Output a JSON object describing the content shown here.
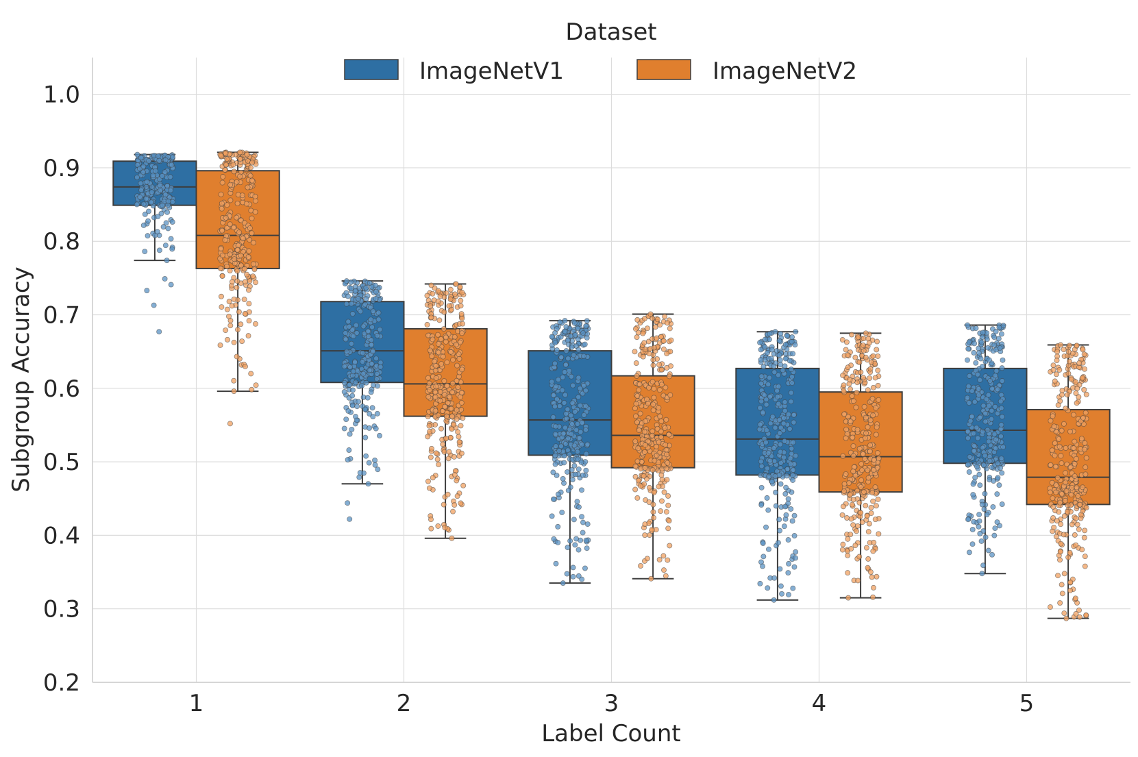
{
  "chart_data": {
    "type": "box",
    "xlabel": "Label Count",
    "ylabel": "Subgroup Accuracy",
    "ylim": [
      0.2,
      1.05
    ],
    "yticks": [
      "0.2",
      "0.3",
      "0.4",
      "0.5",
      "0.6",
      "0.7",
      "0.8",
      "0.9",
      "1.0"
    ],
    "categories": [
      "1",
      "2",
      "3",
      "4",
      "5"
    ],
    "legend": {
      "title": "Dataset",
      "placement": "top-center"
    },
    "grid": true,
    "series": [
      {
        "name": "ImageNetV1",
        "color": "#2e6fa3",
        "point_color": "#5b93c4",
        "boxes": [
          {
            "q1": 0.849,
            "median": 0.874,
            "q3": 0.909,
            "whisker_low": 0.774,
            "whisker_high": 0.918,
            "n": 200,
            "outliers": [
              0.749,
              0.741,
              0.733,
              0.713,
              0.677
            ]
          },
          {
            "q1": 0.608,
            "median": 0.651,
            "q3": 0.718,
            "whisker_low": 0.47,
            "whisker_high": 0.746,
            "n": 260,
            "outliers": [
              0.444,
              0.422
            ]
          },
          {
            "q1": 0.509,
            "median": 0.557,
            "q3": 0.651,
            "whisker_low": 0.335,
            "whisker_high": 0.692,
            "n": 300,
            "outliers": []
          },
          {
            "q1": 0.482,
            "median": 0.531,
            "q3": 0.627,
            "whisker_low": 0.312,
            "whisker_high": 0.677,
            "n": 300,
            "outliers": []
          },
          {
            "q1": 0.498,
            "median": 0.543,
            "q3": 0.627,
            "whisker_low": 0.348,
            "whisker_high": 0.686,
            "n": 280,
            "outliers": []
          }
        ]
      },
      {
        "name": "ImageNetV2",
        "color": "#e07f2e",
        "point_color": "#f0a060",
        "boxes": [
          {
            "q1": 0.763,
            "median": 0.808,
            "q3": 0.896,
            "whisker_low": 0.596,
            "whisker_high": 0.921,
            "n": 280,
            "outliers": [
              0.552
            ]
          },
          {
            "q1": 0.562,
            "median": 0.606,
            "q3": 0.681,
            "whisker_low": 0.396,
            "whisker_high": 0.742,
            "n": 300,
            "outliers": []
          },
          {
            "q1": 0.492,
            "median": 0.536,
            "q3": 0.617,
            "whisker_low": 0.341,
            "whisker_high": 0.701,
            "n": 300,
            "outliers": []
          },
          {
            "q1": 0.459,
            "median": 0.507,
            "q3": 0.595,
            "whisker_low": 0.315,
            "whisker_high": 0.675,
            "n": 300,
            "outliers": []
          },
          {
            "q1": 0.442,
            "median": 0.479,
            "q3": 0.571,
            "whisker_low": 0.287,
            "whisker_high": 0.659,
            "n": 300,
            "outliers": []
          }
        ]
      }
    ]
  }
}
